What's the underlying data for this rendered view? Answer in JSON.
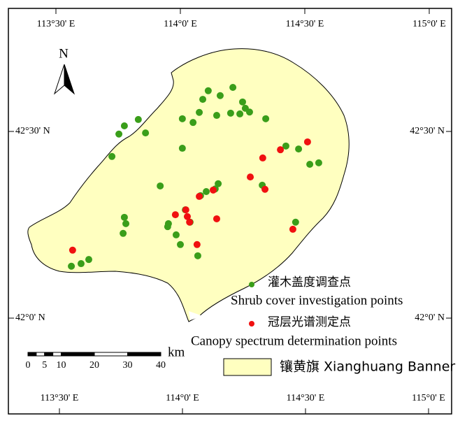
{
  "map": {
    "north": "N",
    "lon_ticks": [
      {
        "value": 113.5,
        "label": "113°30' E"
      },
      {
        "value": 114.0,
        "label": "114°0' E"
      },
      {
        "value": 114.5,
        "label": "114°30' E"
      },
      {
        "value": 115.0,
        "label": "115°0' E"
      }
    ],
    "lat_ticks": [
      {
        "value": 42.5,
        "label": "42°30' N"
      },
      {
        "value": 42.0,
        "label": "42°0' N"
      }
    ],
    "series": [
      {
        "name_zh": "灌木盖度调查点",
        "name_en": "Shrub cover investigation points",
        "color": "#3a9e1a",
        "lon": [
          114.112,
          114.16,
          114.211,
          114.09,
          114.25,
          114.261,
          114.278,
          114.076,
          114.008,
          114.051,
          114.146,
          114.202,
          114.239,
          114.343,
          113.775,
          113.831,
          113.753,
          113.86,
          114.008,
          113.725,
          114.424,
          114.475,
          114.52,
          114.556,
          113.919,
          114.104,
          114.14,
          114.152,
          114.081,
          114.329,
          113.775,
          113.781,
          113.77,
          113.952,
          113.949,
          113.983,
          114.02,
          114.039,
          114.0,
          114.07,
          114.463,
          113.562,
          113.601,
          113.632
        ],
        "lat": [
          42.609,
          42.596,
          42.618,
          42.586,
          42.579,
          42.562,
          42.552,
          42.551,
          42.534,
          42.524,
          42.543,
          42.549,
          42.547,
          42.534,
          42.515,
          42.532,
          42.493,
          42.496,
          42.455,
          42.433,
          42.461,
          42.453,
          42.412,
          42.416,
          42.354,
          42.339,
          42.346,
          42.36,
          42.328,
          42.356,
          42.27,
          42.253,
          42.227,
          42.253,
          42.245,
          42.223,
          42.29,
          42.257,
          42.197,
          42.167,
          42.257,
          42.139,
          42.146,
          42.157
        ]
      },
      {
        "name_zh": "冠层光谱测定点",
        "name_en": "Canopy spectrum determination points",
        "color": "#f01010",
        "lon": [
          114.331,
          114.402,
          114.511,
          114.281,
          114.34,
          114.132,
          114.076,
          113.98,
          114.022,
          114.028,
          114.037,
          114.146,
          114.067,
          114.452,
          113.567
        ],
        "lat": [
          42.429,
          42.451,
          42.472,
          42.378,
          42.345,
          42.343,
          42.326,
          42.277,
          42.29,
          42.272,
          42.257,
          42.266,
          42.197,
          42.238,
          42.182
        ]
      }
    ],
    "region": {
      "name": "镶黄旗 Xianghuang Banner",
      "color": "#ffffc0"
    },
    "scale_bar": {
      "ticks": [
        0,
        5,
        10,
        20,
        30,
        40
      ],
      "unit": "km"
    }
  }
}
